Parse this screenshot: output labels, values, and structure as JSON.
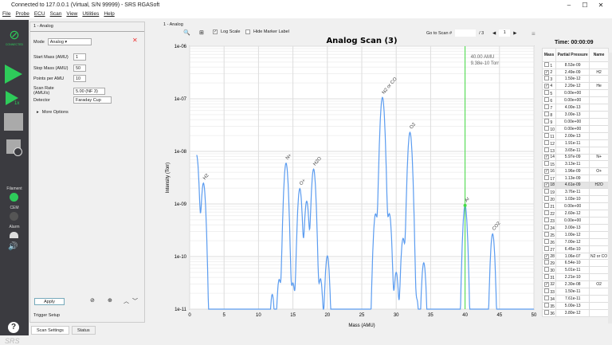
{
  "window": {
    "title": "Connected to 127.0.0.1 (Virtual, S/N 99999) - SRS RGASoft",
    "min": "–",
    "max": "☐",
    "close": "✕"
  },
  "menu": [
    "File",
    "Probe",
    "ECU",
    "Scan",
    "View",
    "Utilities",
    "Help"
  ],
  "sidebar": {
    "connected": "CONNECTED",
    "repeat_label": "1x",
    "filament": "Filament",
    "cem": "CEM",
    "alarm": "Alarm",
    "help": "?",
    "logo": "SRS",
    "filament_color": "#2ecc5a",
    "cem_color": "#555555"
  },
  "settings": {
    "tab": "1 - Analog",
    "mode_label": "Mode",
    "mode": "Analog",
    "start_mass_label": "Start Mass (AMU)",
    "start_mass": "1",
    "stop_mass_label": "Stop Mass (AMU)",
    "stop_mass": "50",
    "ppa_label": "Points per AMU",
    "ppa": "10",
    "rate_label": "Scan Rate (AMU/s)",
    "rate": "5.00 (NF 3)",
    "detector_label": "Detector",
    "detector": "Faraday Cup",
    "more": "More Options",
    "apply": "Apply",
    "trigger": "Trigger Setup"
  },
  "bottom_tabs": [
    "Scan Settings",
    "Status"
  ],
  "toolbar": {
    "tab": "1 - Analog",
    "log_scale": "Log Scale",
    "log_checked": true,
    "hide_marker": "Hide Marker Label",
    "hide_checked": false,
    "goto": "Go to Scan #",
    "goto_value": "",
    "of": "/ 3",
    "scan_index": "1",
    "time": "Time: 00:00:09"
  },
  "chart_data": {
    "type": "line",
    "title": "Analog Scan (3)",
    "xlabel": "Mass (AMU)",
    "ylabel": "Intensity (Torr)",
    "xlim": [
      0,
      50
    ],
    "ylim": [
      1e-11,
      1e-06
    ],
    "yscale": "log",
    "grid": true,
    "xticks": [
      "0",
      "5",
      "10",
      "15",
      "20",
      "25",
      "30",
      "35",
      "40",
      "45",
      "50"
    ],
    "yticks": [
      "1e-06",
      "1e-07",
      "1e-08",
      "1e-09",
      "1e-10",
      "1e-11"
    ],
    "line_color": "#5b9cf0",
    "masses": [
      1,
      2,
      3,
      4,
      5,
      6,
      7,
      8,
      9,
      10,
      11,
      12,
      13,
      14,
      15,
      16,
      17,
      18,
      19,
      20,
      21,
      22,
      23,
      24,
      25,
      26,
      27,
      28,
      29,
      30,
      31,
      32,
      33,
      34,
      35,
      36,
      37,
      38,
      39,
      40,
      41,
      42,
      43,
      44,
      45,
      46,
      47,
      48,
      49,
      50
    ],
    "pressures": [
      8.53e-09,
      2.49e-09,
      1.5e-12,
      2.2e-12,
      0,
      0,
      4e-13,
      3e-13,
      0,
      0,
      2e-13,
      1.91e-11,
      3.65e-11,
      5.97e-09,
      3.13e-11,
      1.96e-09,
      1.13e-09,
      4.61e-09,
      3.76e-11,
      1.03e-10,
      0,
      2.6e-12,
      0,
      3e-13,
      1e-12,
      7e-12,
      6.45e-10,
      1.06e-07,
      6.54e-10,
      5.01e-11,
      2.21e-10,
      2.3e-08,
      1.5e-11,
      7.61e-11,
      5e-13,
      3.8e-12,
      0,
      0,
      0,
      9.38e-10,
      0,
      0,
      0,
      2.7e-10,
      0,
      0,
      0,
      0,
      0,
      0
    ],
    "peak_labels": [
      {
        "mass": 2,
        "text": "H2"
      },
      {
        "mass": 14,
        "text": "N+"
      },
      {
        "mass": 16,
        "text": "O+"
      },
      {
        "mass": 18,
        "text": "H2O"
      },
      {
        "mass": 28,
        "text": "N2 or CO"
      },
      {
        "mass": 32,
        "text": "O2"
      },
      {
        "mass": 40,
        "text": "Ar"
      },
      {
        "mass": 44,
        "text": "CO2"
      }
    ],
    "marker": {
      "mass": 40,
      "line1": "40.00 AMU",
      "line2": "9.38e-10 Torr",
      "color": "#44dd44"
    }
  },
  "table": {
    "headers": [
      "Mass",
      "Partial Pressure",
      "Name"
    ],
    "rows": [
      [
        "1",
        "8.53e-09",
        "",
        false
      ],
      [
        "2",
        "2.49e-09",
        "H2",
        true
      ],
      [
        "3",
        "1.50e-12",
        "",
        false
      ],
      [
        "4",
        "2.20e-12",
        "He",
        true
      ],
      [
        "5",
        "0.00e+00",
        "",
        false
      ],
      [
        "6",
        "0.00e+00",
        "",
        false
      ],
      [
        "7",
        "4.00e-13",
        "",
        false
      ],
      [
        "8",
        "3.00e-13",
        "",
        false
      ],
      [
        "9",
        "0.00e+00",
        "",
        false
      ],
      [
        "10",
        "0.00e+00",
        "",
        false
      ],
      [
        "11",
        "2.00e-13",
        "",
        false
      ],
      [
        "12",
        "1.91e-11",
        "",
        false
      ],
      [
        "13",
        "3.65e-11",
        "",
        false
      ],
      [
        "14",
        "5.97e-09",
        "N+",
        true
      ],
      [
        "15",
        "3.13e-11",
        "",
        false
      ],
      [
        "16",
        "1.96e-09",
        "O+",
        true
      ],
      [
        "17",
        "1.13e-09",
        "",
        false
      ],
      [
        "18",
        "4.61e-09",
        "H2O",
        true
      ],
      [
        "19",
        "3.76e-11",
        "",
        false
      ],
      [
        "20",
        "1.03e-10",
        "",
        false
      ],
      [
        "21",
        "0.00e+00",
        "",
        false
      ],
      [
        "22",
        "2.60e-12",
        "",
        false
      ],
      [
        "23",
        "0.00e+00",
        "",
        false
      ],
      [
        "24",
        "3.00e-13",
        "",
        false
      ],
      [
        "25",
        "1.00e-12",
        "",
        false
      ],
      [
        "26",
        "7.00e-12",
        "",
        false
      ],
      [
        "27",
        "6.45e-10",
        "",
        false
      ],
      [
        "28",
        "1.06e-07",
        "N2 or CO",
        true
      ],
      [
        "29",
        "6.54e-10",
        "",
        false
      ],
      [
        "30",
        "5.01e-11",
        "",
        false
      ],
      [
        "31",
        "2.21e-10",
        "",
        false
      ],
      [
        "32",
        "2.30e-08",
        "O2",
        true
      ],
      [
        "33",
        "1.50e-11",
        "",
        false
      ],
      [
        "34",
        "7.61e-11",
        "",
        false
      ],
      [
        "35",
        "5.00e-13",
        "",
        false
      ],
      [
        "36",
        "3.80e-12",
        "",
        false
      ]
    ]
  }
}
